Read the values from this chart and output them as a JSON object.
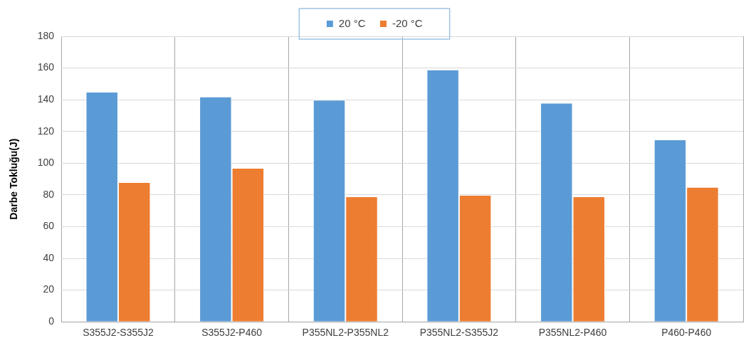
{
  "chart_data": {
    "type": "bar",
    "ylabel": "Darbe Tokluğu(J)",
    "categories": [
      "S355J2-S355J2",
      "S355J2-P460",
      "P355NL2-P355NL2",
      "P355NL2-S355J2",
      "P355NL2-P460",
      "P460-P460"
    ],
    "series": [
      {
        "name": "20 °C",
        "color": "#5b9bd5",
        "values": [
          145,
          142,
          140,
          159,
          138,
          115
        ]
      },
      {
        "name": "-20 °C",
        "color": "#ed7d31",
        "values": [
          88,
          97,
          79,
          80,
          79,
          85
        ]
      }
    ],
    "ylim": [
      0,
      180
    ],
    "yticks": [
      0,
      20,
      40,
      60,
      80,
      100,
      120,
      140,
      160,
      180
    ],
    "grid": true,
    "legend": "top"
  }
}
